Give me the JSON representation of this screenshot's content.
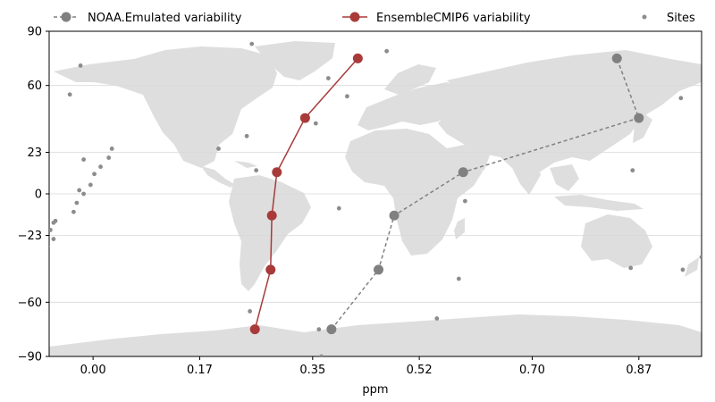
{
  "chart_data": {
    "type": "line",
    "xlabel": "ppm",
    "ylabel": "",
    "xlim": [
      -0.07,
      0.97
    ],
    "ylim": [
      -90,
      90
    ],
    "xticks": [
      0.0,
      0.17,
      0.35,
      0.52,
      0.7,
      0.87
    ],
    "xtick_labels": [
      "0.00",
      "0.17",
      "0.35",
      "0.52",
      "0.70",
      "0.87"
    ],
    "yticks": [
      90,
      60,
      23,
      0,
      -23,
      -60,
      -90
    ],
    "ytick_labels": [
      "90",
      "60",
      "23",
      "0",
      "−23",
      "−60",
      "−90"
    ],
    "grid": "horizontal",
    "legend_position": "top",
    "background": "world-map",
    "colors": {
      "noaa": "#808080",
      "ensemble": "#a83a3a",
      "sites": "#8c8c8c",
      "land": "#dedede"
    },
    "series": [
      {
        "name": "NOAA.Emulated variability",
        "style": "dashed",
        "points": [
          {
            "x": 0.38,
            "y": -75
          },
          {
            "x": 0.455,
            "y": -42
          },
          {
            "x": 0.48,
            "y": -12
          },
          {
            "x": 0.59,
            "y": 12
          },
          {
            "x": 0.87,
            "y": 42
          },
          {
            "x": 0.835,
            "y": 75
          }
        ]
      },
      {
        "name": "EnsembleCMIP6 variability",
        "style": "solid",
        "points": [
          {
            "x": 0.258,
            "y": -75
          },
          {
            "x": 0.283,
            "y": -42
          },
          {
            "x": 0.285,
            "y": -12
          },
          {
            "x": 0.293,
            "y": 12
          },
          {
            "x": 0.338,
            "y": 42
          },
          {
            "x": 0.422,
            "y": 75
          }
        ]
      },
      {
        "name": "Sites",
        "style": "scatter",
        "points": [
          {
            "x": 0.253,
            "y": 83
          },
          {
            "x": 0.468,
            "y": 79
          },
          {
            "x": -0.02,
            "y": 71
          },
          {
            "x": 0.375,
            "y": 64
          },
          {
            "x": -0.037,
            "y": 55
          },
          {
            "x": 0.405,
            "y": 54
          },
          {
            "x": 0.937,
            "y": 53
          },
          {
            "x": 0.355,
            "y": 39
          },
          {
            "x": 0.245,
            "y": 32
          },
          {
            "x": -0.08,
            "y": 29
          },
          {
            "x": 0.2,
            "y": 25
          },
          {
            "x": 0.03,
            "y": 25
          },
          {
            "x": 0.025,
            "y": 20
          },
          {
            "x": -0.015,
            "y": 19
          },
          {
            "x": 0.012,
            "y": 15
          },
          {
            "x": 0.26,
            "y": 13
          },
          {
            "x": 0.86,
            "y": 13
          },
          {
            "x": 0.002,
            "y": 11
          },
          {
            "x": -0.004,
            "y": 5
          },
          {
            "x": -0.022,
            "y": 2
          },
          {
            "x": -0.015,
            "y": 0
          },
          {
            "x": 0.593,
            "y": -4
          },
          {
            "x": -0.026,
            "y": -5
          },
          {
            "x": 0.392,
            "y": -8
          },
          {
            "x": -0.031,
            "y": -10
          },
          {
            "x": -0.06,
            "y": -15
          },
          {
            "x": -0.063,
            "y": -16
          },
          {
            "x": -0.068,
            "y": -20
          },
          {
            "x": -0.063,
            "y": -25
          },
          {
            "x": -0.073,
            "y": -29
          },
          {
            "x": 0.97,
            "y": -35
          },
          {
            "x": 0.857,
            "y": -41
          },
          {
            "x": 0.94,
            "y": -42
          },
          {
            "x": 0.583,
            "y": -47
          },
          {
            "x": 0.25,
            "y": -65
          },
          {
            "x": 0.548,
            "y": -69
          },
          {
            "x": 0.36,
            "y": -75
          },
          {
            "x": 0.364,
            "y": -90
          }
        ]
      }
    ]
  }
}
